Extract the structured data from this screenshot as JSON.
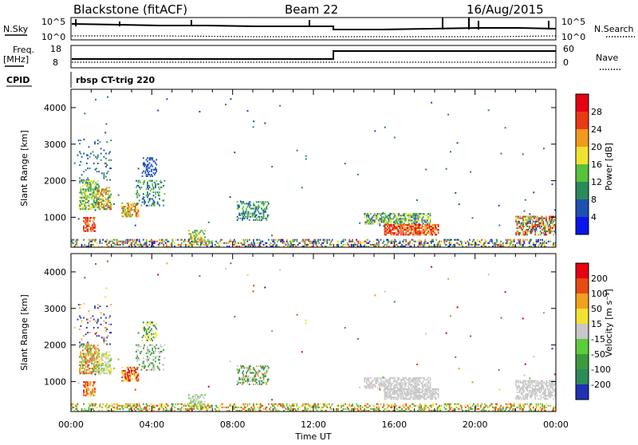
{
  "header": {
    "station": "Blackstone (fitACF)",
    "beam": "Beam 22",
    "date": "16/Aug/2015"
  },
  "top_panels": {
    "nsky_label": "N.Sky",
    "nsky_ticks": [
      "10^5",
      "10^0"
    ],
    "nsearch_label": "N.Search",
    "freq_label_1": "Freq.",
    "freq_label_2": "[MHz]",
    "freq_ticks": [
      "18",
      "8"
    ],
    "nave_ticks": [
      "60",
      "0"
    ],
    "nave_label": "Nave",
    "cpid_label": "CPID",
    "cpid_value": "rbsp CT-trig 220"
  },
  "chart_data": [
    {
      "type": "heatmap",
      "name": "power",
      "ylabel": "Slant Range [km]",
      "x_ticks": [
        "00:00",
        "04:00",
        "08:00",
        "12:00",
        "16:00",
        "20:00",
        "00:00"
      ],
      "y_ticks": [
        "1000",
        "2000",
        "3000",
        "4000"
      ],
      "ylim": [
        180,
        4500
      ],
      "colorbar": {
        "label": "Power [dB]",
        "ticks": [
          "4",
          "8",
          "12",
          "16",
          "20",
          "24",
          "28"
        ],
        "colors": [
          "#0a14f0",
          "#1e50b4",
          "#2a8a5a",
          "#57c23a",
          "#f2e230",
          "#f29a1c",
          "#e83a14",
          "#e60012"
        ]
      }
    },
    {
      "type": "heatmap",
      "name": "velocity",
      "ylabel": "Slant Range [km]",
      "xlabel": "Time UT",
      "x_ticks": [
        "00:00",
        "04:00",
        "08:00",
        "12:00",
        "16:00",
        "20:00",
        "00:00"
      ],
      "y_ticks": [
        "1000",
        "2000",
        "3000",
        "4000"
      ],
      "ylim": [
        180,
        4500
      ],
      "colorbar": {
        "label": "Velocity [m s⁻¹]",
        "ticks": [
          "200",
          "100",
          "50",
          "15",
          "-15",
          "-50",
          "-100",
          "-200"
        ],
        "colors": [
          "#1e32b4",
          "#2e8a5a",
          "#3c9a3c",
          "#5ccd3c",
          "#c8c8c8",
          "#f2e230",
          "#f2a01e",
          "#e84a14",
          "#e60012"
        ]
      }
    }
  ]
}
